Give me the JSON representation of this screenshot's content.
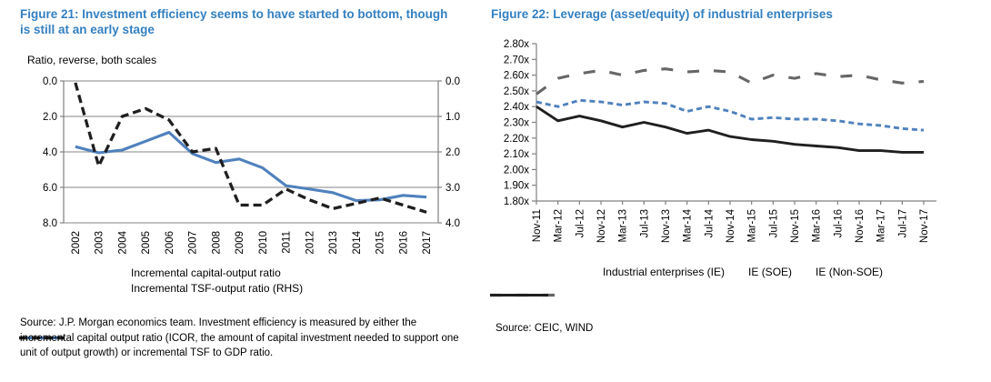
{
  "colors": {
    "title_blue": "#3380c2",
    "line_blue": "#4f81bd",
    "line_black": "#1f1f1f",
    "line_gray": "#666666",
    "grid": "#9e9e9e",
    "axis": "#808080",
    "text": "#000000"
  },
  "figure21": {
    "title": "Figure 21: Investment efficiency seems to have started to bottom, though is still at an early stage",
    "subtitle": "Ratio, reverse, both scales",
    "source": "Source: J.P. Morgan economics team. Investment efficiency is measured by either the incremental capital output ratio (ICOR, the amount of capital investment needed to support one unit of output growth) or incremental TSF to GDP ratio."
  },
  "figure22": {
    "title": "Figure 22: Leverage (asset/equity) of industrial enterprises",
    "source": "Source: CEIC, WIND"
  },
  "chart_data": [
    {
      "type": "line",
      "title": "Figure 21: Investment efficiency seems to have started to bottom, though is still at an early stage",
      "subtitle": "Ratio, reverse, both scales",
      "categories": [
        "2002",
        "2003",
        "2004",
        "2005",
        "2006",
        "2007",
        "2008",
        "2009",
        "2010",
        "2011",
        "2012",
        "2013",
        "2014",
        "2015",
        "2016",
        "2017"
      ],
      "left_axis": {
        "label_ticks": [
          "0.0",
          "2.0",
          "4.0",
          "6.0",
          "8.0"
        ],
        "range": [
          0,
          8
        ],
        "reversed": true
      },
      "right_axis": {
        "label_ticks": [
          "0.0",
          "1.0",
          "2.0",
          "3.0",
          "4.0"
        ],
        "range": [
          0,
          4
        ],
        "reversed": true
      },
      "grid": "horizontal",
      "legend_position": "bottom",
      "series": [
        {
          "name": "Incremental capital-output ratio",
          "axis": "left",
          "line": "solid",
          "color": "#4f81bd",
          "values": [
            3.7,
            4.05,
            3.9,
            3.4,
            2.9,
            4.1,
            4.6,
            4.4,
            4.9,
            5.9,
            6.1,
            6.3,
            6.75,
            6.7,
            6.45,
            6.55
          ]
        },
        {
          "name": "Incremental TSF-output ratio (RHS)",
          "axis": "right",
          "line": "dashed",
          "color": "#1f1f1f",
          "values": [
            0.05,
            2.4,
            1.0,
            0.78,
            1.1,
            2.0,
            1.9,
            3.5,
            3.5,
            3.05,
            3.35,
            3.6,
            3.45,
            3.3,
            3.5,
            3.7
          ]
        }
      ]
    },
    {
      "type": "line",
      "title": "Figure 22: Leverage (asset/equity) of industrial enterprises",
      "categories": [
        "Nov-11",
        "Mar-12",
        "Jul-12",
        "Nov-12",
        "Mar-13",
        "Jul-13",
        "Nov-13",
        "Mar-14",
        "Jul-14",
        "Nov-14",
        "Mar-15",
        "Jul-15",
        "Nov-15",
        "Mar-16",
        "Jul-16",
        "Nov-16",
        "Mar-17",
        "Jul-17",
        "Nov-17"
      ],
      "y_axis": {
        "label_ticks": [
          "2.80x",
          "2.70x",
          "2.60x",
          "2.50x",
          "2.40x",
          "2.30x",
          "2.20x",
          "2.10x",
          "2.00x",
          "1.90x",
          "1.80x"
        ],
        "range": [
          1.8,
          2.8
        ]
      },
      "grid": "none",
      "legend_position": "bottom",
      "series": [
        {
          "name": "Industrial enterprises (IE)",
          "line": "dashed",
          "color": "#4f81bd",
          "values": [
            2.43,
            2.4,
            2.44,
            2.43,
            2.41,
            2.43,
            2.42,
            2.37,
            2.4,
            2.37,
            2.32,
            2.33,
            2.32,
            2.32,
            2.31,
            2.29,
            2.28,
            2.26,
            2.25
          ]
        },
        {
          "name": "IE (SOE)",
          "line": "dashed-long",
          "color": "#666666",
          "values": [
            2.48,
            2.58,
            2.61,
            2.63,
            2.6,
            2.63,
            2.64,
            2.62,
            2.63,
            2.62,
            2.55,
            2.6,
            2.58,
            2.61,
            2.59,
            2.6,
            2.57,
            2.55,
            2.56
          ]
        },
        {
          "name": "IE (Non-SOE)",
          "line": "solid",
          "color": "#1f1f1f",
          "values": [
            2.4,
            2.31,
            2.34,
            2.31,
            2.27,
            2.3,
            2.27,
            2.23,
            2.25,
            2.21,
            2.19,
            2.18,
            2.16,
            2.15,
            2.14,
            2.12,
            2.12,
            2.11,
            2.11
          ]
        }
      ]
    }
  ]
}
